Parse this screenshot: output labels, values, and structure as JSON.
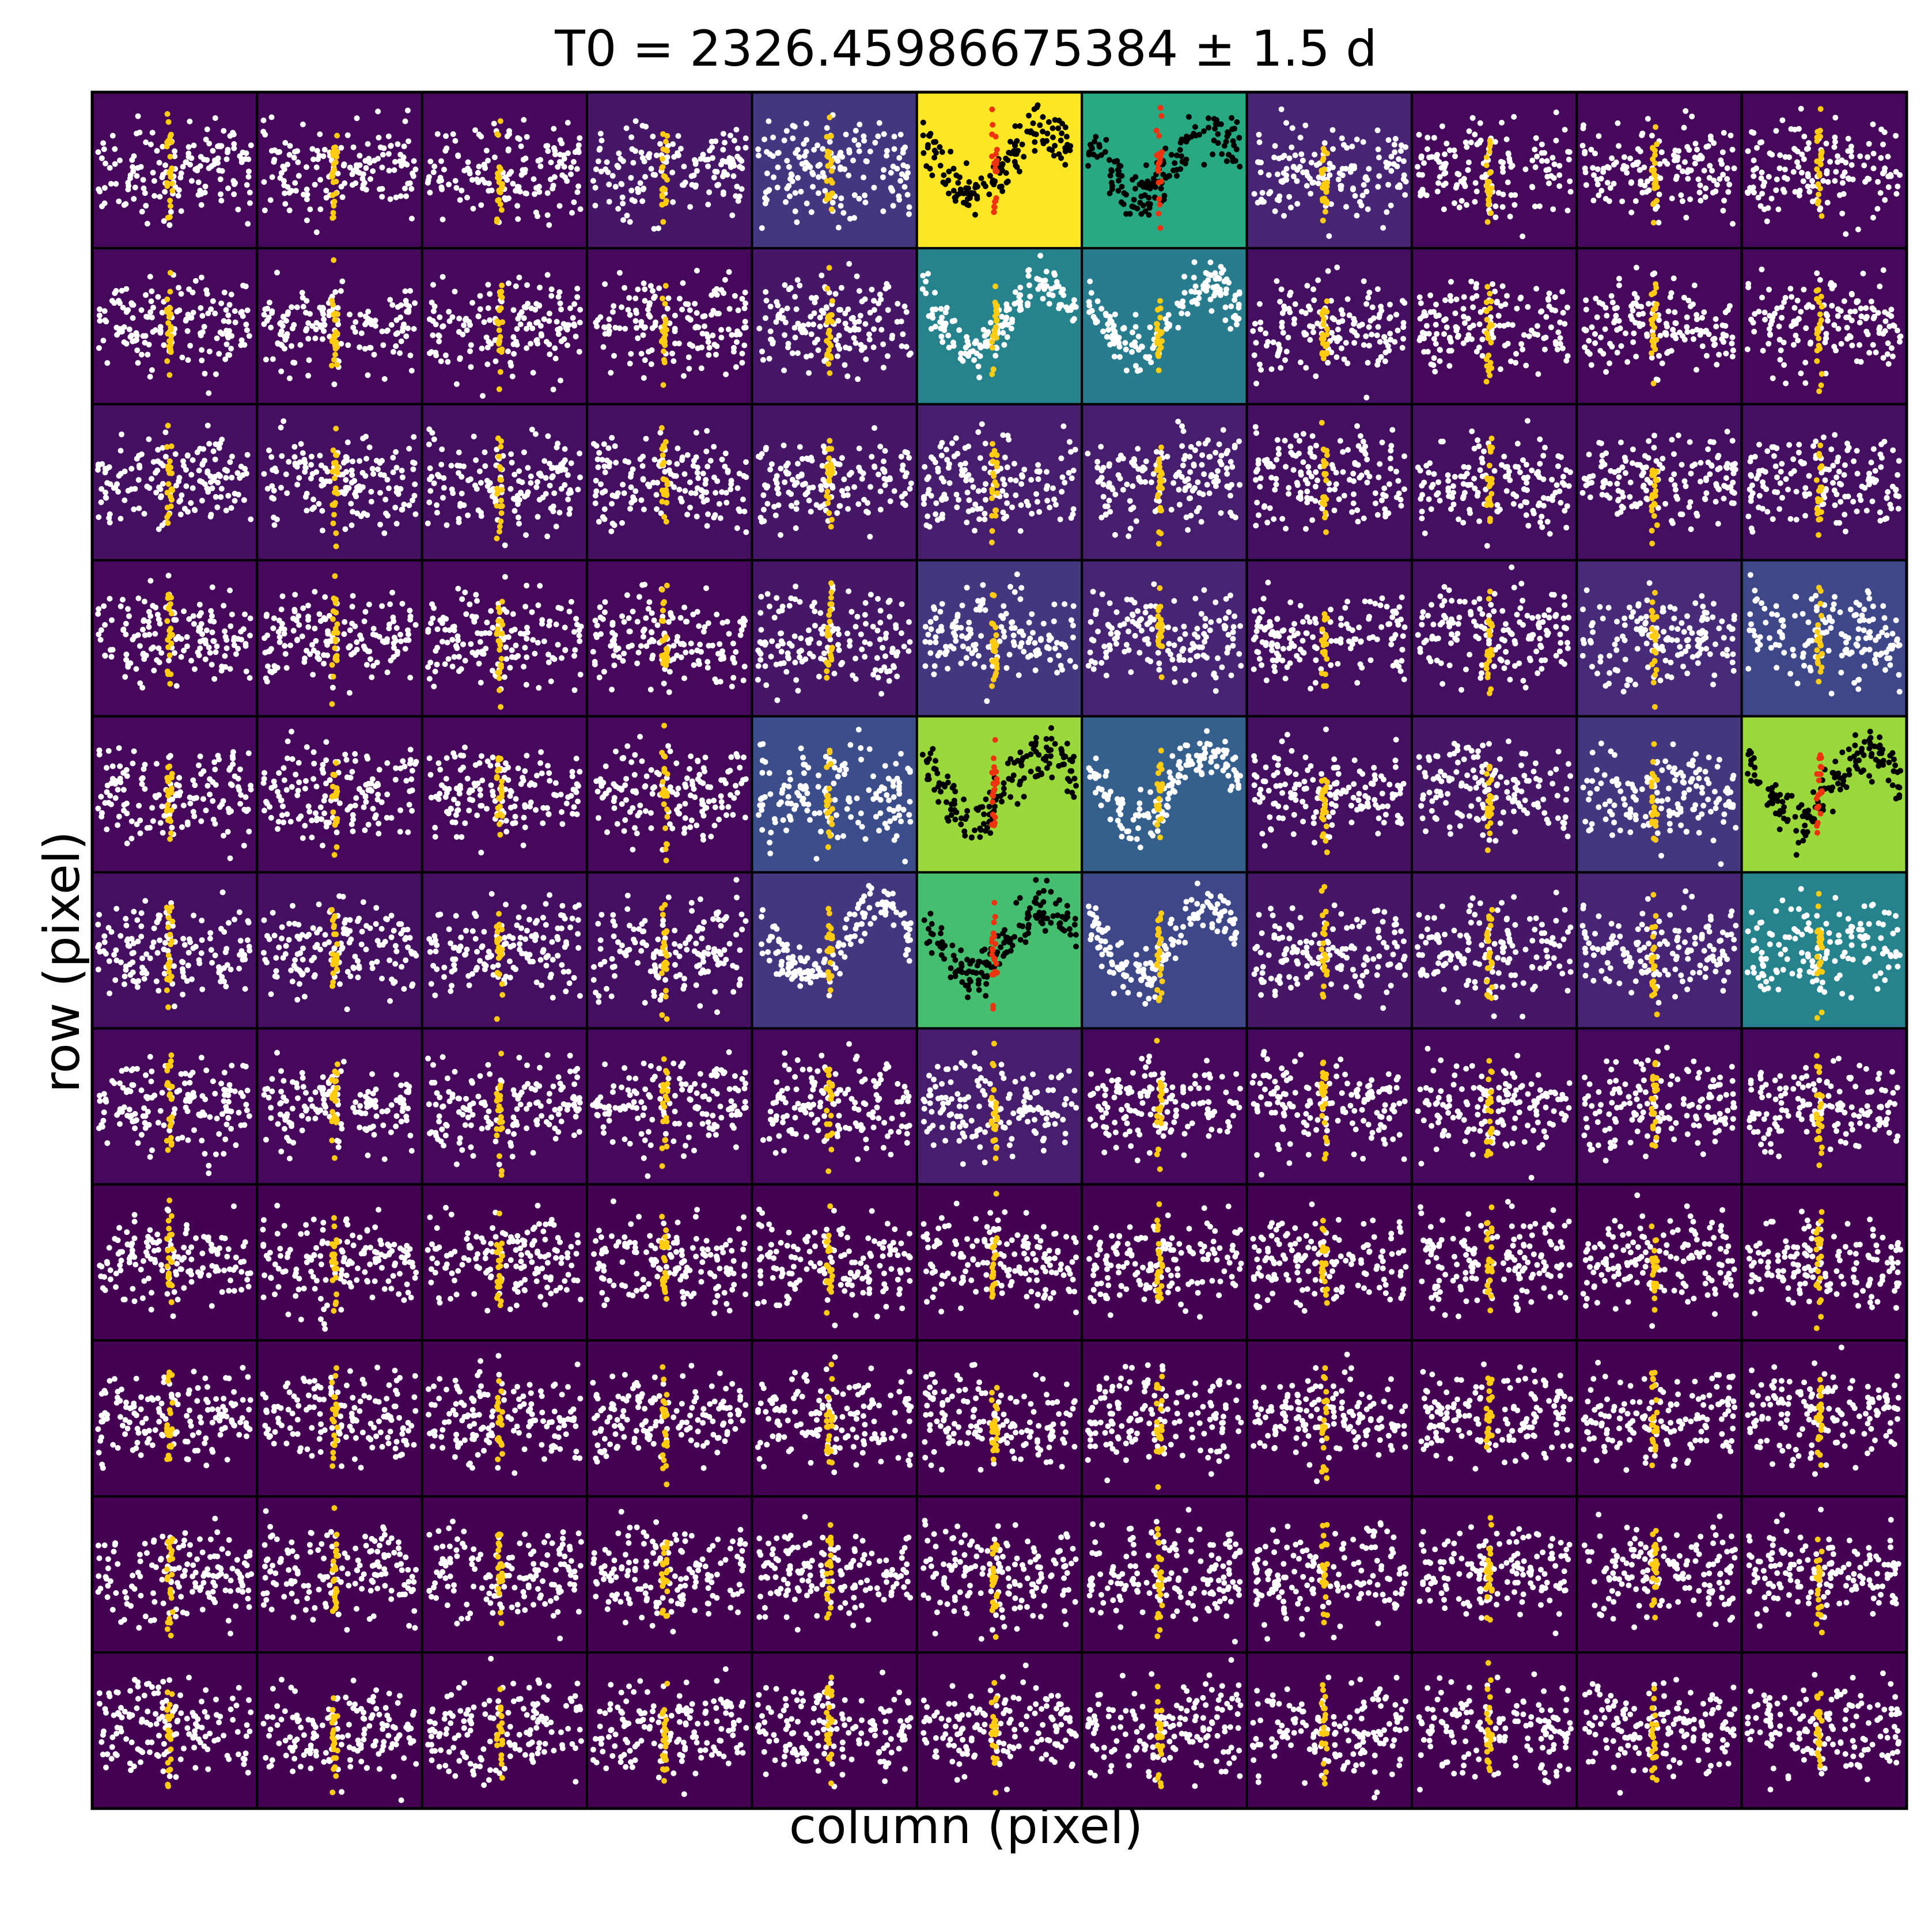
{
  "chart_data": {
    "type": "scatter",
    "title": "T0 = 2326.45986675384 ± 1.5 d",
    "xlabel": "column (pixel)",
    "ylabel": "row (pixel)",
    "grid_rows": 11,
    "grid_cols": 11,
    "tick_labels": "none",
    "colormap": "viridis",
    "point_colors": {
      "out_of_transit": "#ffffff",
      "in_transit": "#ffcc11",
      "target_out_of_transit": "#000000",
      "target_in_transit": "#ee3311"
    },
    "pixel_brightness": [
      [
        0.02,
        0.02,
        0.02,
        0.06,
        0.16,
        1.0,
        0.6,
        0.1,
        0.02,
        0.02,
        0.02
      ],
      [
        0.02,
        0.02,
        0.02,
        0.02,
        0.06,
        0.45,
        0.42,
        0.04,
        0.02,
        0.02,
        0.02
      ],
      [
        0.04,
        0.04,
        0.04,
        0.04,
        0.06,
        0.08,
        0.08,
        0.04,
        0.04,
        0.04,
        0.04
      ],
      [
        0.02,
        0.02,
        0.02,
        0.02,
        0.06,
        0.16,
        0.1,
        0.04,
        0.04,
        0.12,
        0.22
      ],
      [
        0.02,
        0.02,
        0.02,
        0.02,
        0.24,
        0.85,
        0.3,
        0.04,
        0.06,
        0.16,
        0.85
      ],
      [
        0.04,
        0.04,
        0.04,
        0.04,
        0.16,
        0.7,
        0.22,
        0.06,
        0.06,
        0.1,
        0.45
      ],
      [
        0.02,
        0.02,
        0.02,
        0.02,
        0.02,
        0.08,
        0.02,
        0.02,
        0.02,
        0.02,
        0.02
      ],
      [
        0.0,
        0.0,
        0.0,
        0.0,
        0.0,
        0.0,
        0.0,
        0.0,
        0.0,
        0.0,
        0.0
      ],
      [
        0.0,
        0.0,
        0.0,
        0.0,
        0.0,
        0.0,
        0.0,
        0.0,
        0.0,
        0.0,
        0.0
      ],
      [
        0.0,
        0.0,
        0.0,
        0.0,
        0.0,
        0.0,
        0.0,
        0.0,
        0.0,
        0.0,
        0.0
      ],
      [
        0.0,
        0.0,
        0.0,
        0.0,
        0.0,
        0.0,
        0.0,
        0.0,
        0.0,
        0.0,
        0.0
      ]
    ],
    "target_pixels": [
      [
        0,
        5
      ],
      [
        0,
        6
      ],
      [
        4,
        5
      ],
      [
        4,
        10
      ],
      [
        5,
        5
      ]
    ],
    "light_curve_shape": "dip",
    "dip_pixels": [
      [
        1,
        5
      ],
      [
        1,
        6
      ],
      [
        4,
        6
      ],
      [
        5,
        4
      ],
      [
        5,
        6
      ]
    ]
  }
}
